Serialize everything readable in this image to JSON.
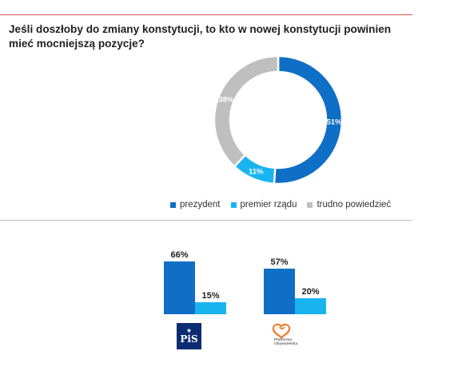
{
  "question": "Jeśli doszłoby do zmiany konstytucji, to kto w nowej konstytucji powinien mieć mocniejszą pozycje?",
  "chart_data": [
    {
      "type": "pie",
      "title": "Jeśli doszłoby do zmiany konstytucji, to kto w nowej konstytucji powinien mieć mocniejszą pozycje?",
      "donut": true,
      "slices": [
        {
          "label": "prezydent",
          "value": 51,
          "display": "51%",
          "color": "#0f6fc6"
        },
        {
          "label": "premier rządu",
          "value": 11,
          "display": "11%",
          "color": "#19b4f0"
        },
        {
          "label": "trudno powiedzieć",
          "value": 38,
          "display": "38%",
          "color": "#bfbfbf"
        }
      ],
      "legend": {
        "position": "bottom",
        "items": [
          {
            "label": "prezydent",
            "color": "#0f6fc6"
          },
          {
            "label": "premier rządu",
            "color": "#19b4f0"
          },
          {
            "label": "trudno powiedzieć",
            "color": "#bfbfbf"
          }
        ]
      }
    },
    {
      "type": "bar",
      "categories": [
        "PiS",
        "Platforma Obywatelska"
      ],
      "series": [
        {
          "values": [
            66,
            57
          ],
          "labels": [
            "66%",
            "57%"
          ],
          "color": "#0f6fc6"
        },
        {
          "values": [
            15,
            20
          ],
          "labels": [
            "15%",
            "20%"
          ],
          "color": "#19b4f0"
        }
      ],
      "ylim": [
        0,
        100
      ],
      "grid": false
    }
  ],
  "logos": {
    "pis": {
      "text": "PiS"
    },
    "po": {
      "line1": "Platforma",
      "line2": "Obywatelska"
    }
  }
}
